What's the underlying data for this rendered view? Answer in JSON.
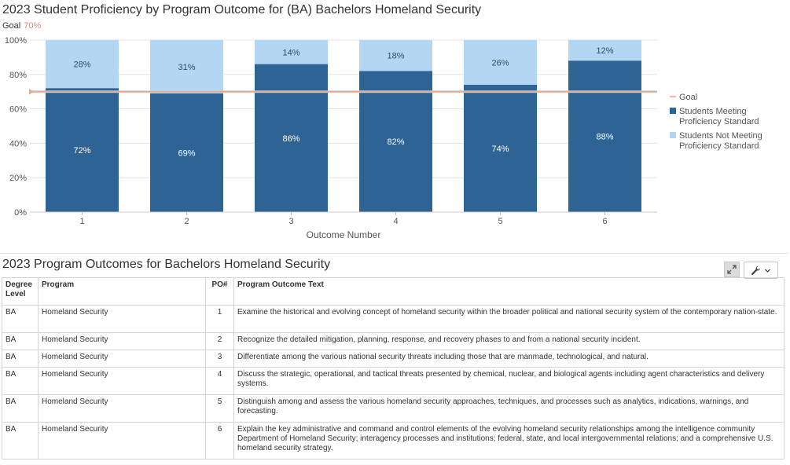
{
  "chart_data": {
    "type": "bar",
    "title": "2023 Student Proficiency by Program Outcome for (BA) Bachelors Homeland Security",
    "goal_label": "Goal",
    "goal_value_label": "70%",
    "goal": 70,
    "categories": [
      "1",
      "2",
      "3",
      "4",
      "5",
      "6"
    ],
    "series": [
      {
        "name": "Students Meeting Proficiency Standard",
        "values": [
          72,
          69,
          86,
          82,
          74,
          88
        ],
        "labels": [
          "72%",
          "69%",
          "86%",
          "82%",
          "74%",
          "88%"
        ],
        "color": "#2e6395"
      },
      {
        "name": "Students Not Meeting Proficiency Standard",
        "values": [
          28,
          31,
          14,
          18,
          26,
          12
        ],
        "labels": [
          "28%",
          "31%",
          "14%",
          "18%",
          "26%",
          "12%"
        ],
        "color": "#b3d7f2"
      }
    ],
    "legend": [
      {
        "label": "Goal",
        "kind": "line",
        "color": "#f0a382"
      },
      {
        "label": "Students Meeting",
        "label2": "Proficiency Standard",
        "kind": "box",
        "color": "#2e6395"
      },
      {
        "label": "Students Not Meeting",
        "label2": "Proficiency Standard",
        "kind": "box",
        "color": "#b3d7f2"
      }
    ],
    "xlabel": "Outcome Number",
    "ylabel": "",
    "ylim": [
      0,
      100
    ],
    "yticks": [
      "0%",
      "20%",
      "40%",
      "60%",
      "80%",
      "100%"
    ],
    "grid": true,
    "stacked": true,
    "legend_position": "right"
  },
  "table": {
    "title": "2023 Program Outcomes for Bachelors Homeland Security",
    "headers": {
      "degree_level": "Degree Level",
      "program": "Program",
      "po": "PO#",
      "text": "Program Outcome Text"
    },
    "rows": [
      {
        "degree": "BA",
        "program": "Homeland Security",
        "po": "1",
        "text": "Examine the historical and evolving concept of homeland security within the broader political and national security system of the contemporary nation-state."
      },
      {
        "degree": "BA",
        "program": "Homeland Security",
        "po": "2",
        "text": "Recognize the detailed mitigation, planning, response, and recovery phases to and from a national security incident."
      },
      {
        "degree": "BA",
        "program": "Homeland Security",
        "po": "3",
        "text": "Differentiate among the various national security threats including those that are manmade, technological, and natural."
      },
      {
        "degree": "BA",
        "program": "Homeland Security",
        "po": "4",
        "text": "Discuss the strategic, operational, and tactical threats presented by chemical, nuclear, and biological agents including agent characteristics and delivery systems."
      },
      {
        "degree": "BA",
        "program": "Homeland Security",
        "po": "5",
        "text": "Distinguish among and assess the various homeland security approaches, techniques, and processes such as analytics, indications, warnings, and forecasting."
      },
      {
        "degree": "BA",
        "program": "Homeland Security",
        "po": "6",
        "text": "Explain the key administrative and command and control elements of the evolving homeland security relationships among the intelligence community Department of Homeland Security; interagency processes and institutions; federal, state, and local intergovernmental relations; and a comprehensive U.S. homeland security strategy."
      }
    ]
  },
  "toolbar": {
    "expand_icon": "expand-icon",
    "wrench_icon": "wrench-icon"
  }
}
